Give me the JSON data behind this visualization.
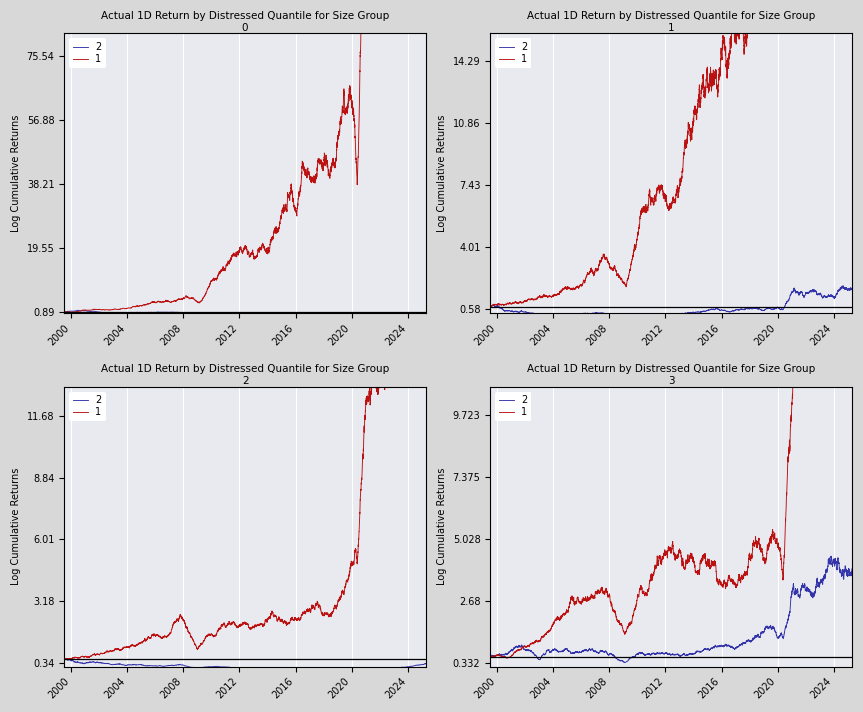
{
  "title_line1": "Actual 1D Return by Distressed Quantile for Size Group",
  "groups": [
    0,
    1,
    2,
    3
  ],
  "colors": {
    "2": "#3333aa",
    "1": "#bb1111"
  },
  "ylabel": "Log Cumulative Returns",
  "background_color": "#e8eaf0",
  "yticks": {
    "0": [
      0.89,
      19.55,
      38.21,
      56.88,
      75.54
    ],
    "1": [
      0.58,
      4.01,
      7.43,
      10.86,
      14.29
    ],
    "2": [
      0.34,
      3.18,
      6.01,
      8.84,
      11.68
    ],
    "3": [
      0.332,
      2.68,
      5.028,
      7.375,
      9.723
    ]
  },
  "ylims": {
    "0": [
      0.5,
      82.0
    ],
    "1": [
      0.35,
      15.8
    ],
    "2": [
      0.18,
      13.0
    ],
    "3": [
      0.18,
      10.8
    ]
  },
  "hline_y": {
    "0": 0.89,
    "1": 0.7,
    "2": 0.55,
    "3": 0.55
  },
  "start_year": 1999.5,
  "end_year": 2025.3,
  "n_points": 6500,
  "xticks": [
    2000,
    2004,
    2008,
    2012,
    2016,
    2020,
    2024
  ]
}
